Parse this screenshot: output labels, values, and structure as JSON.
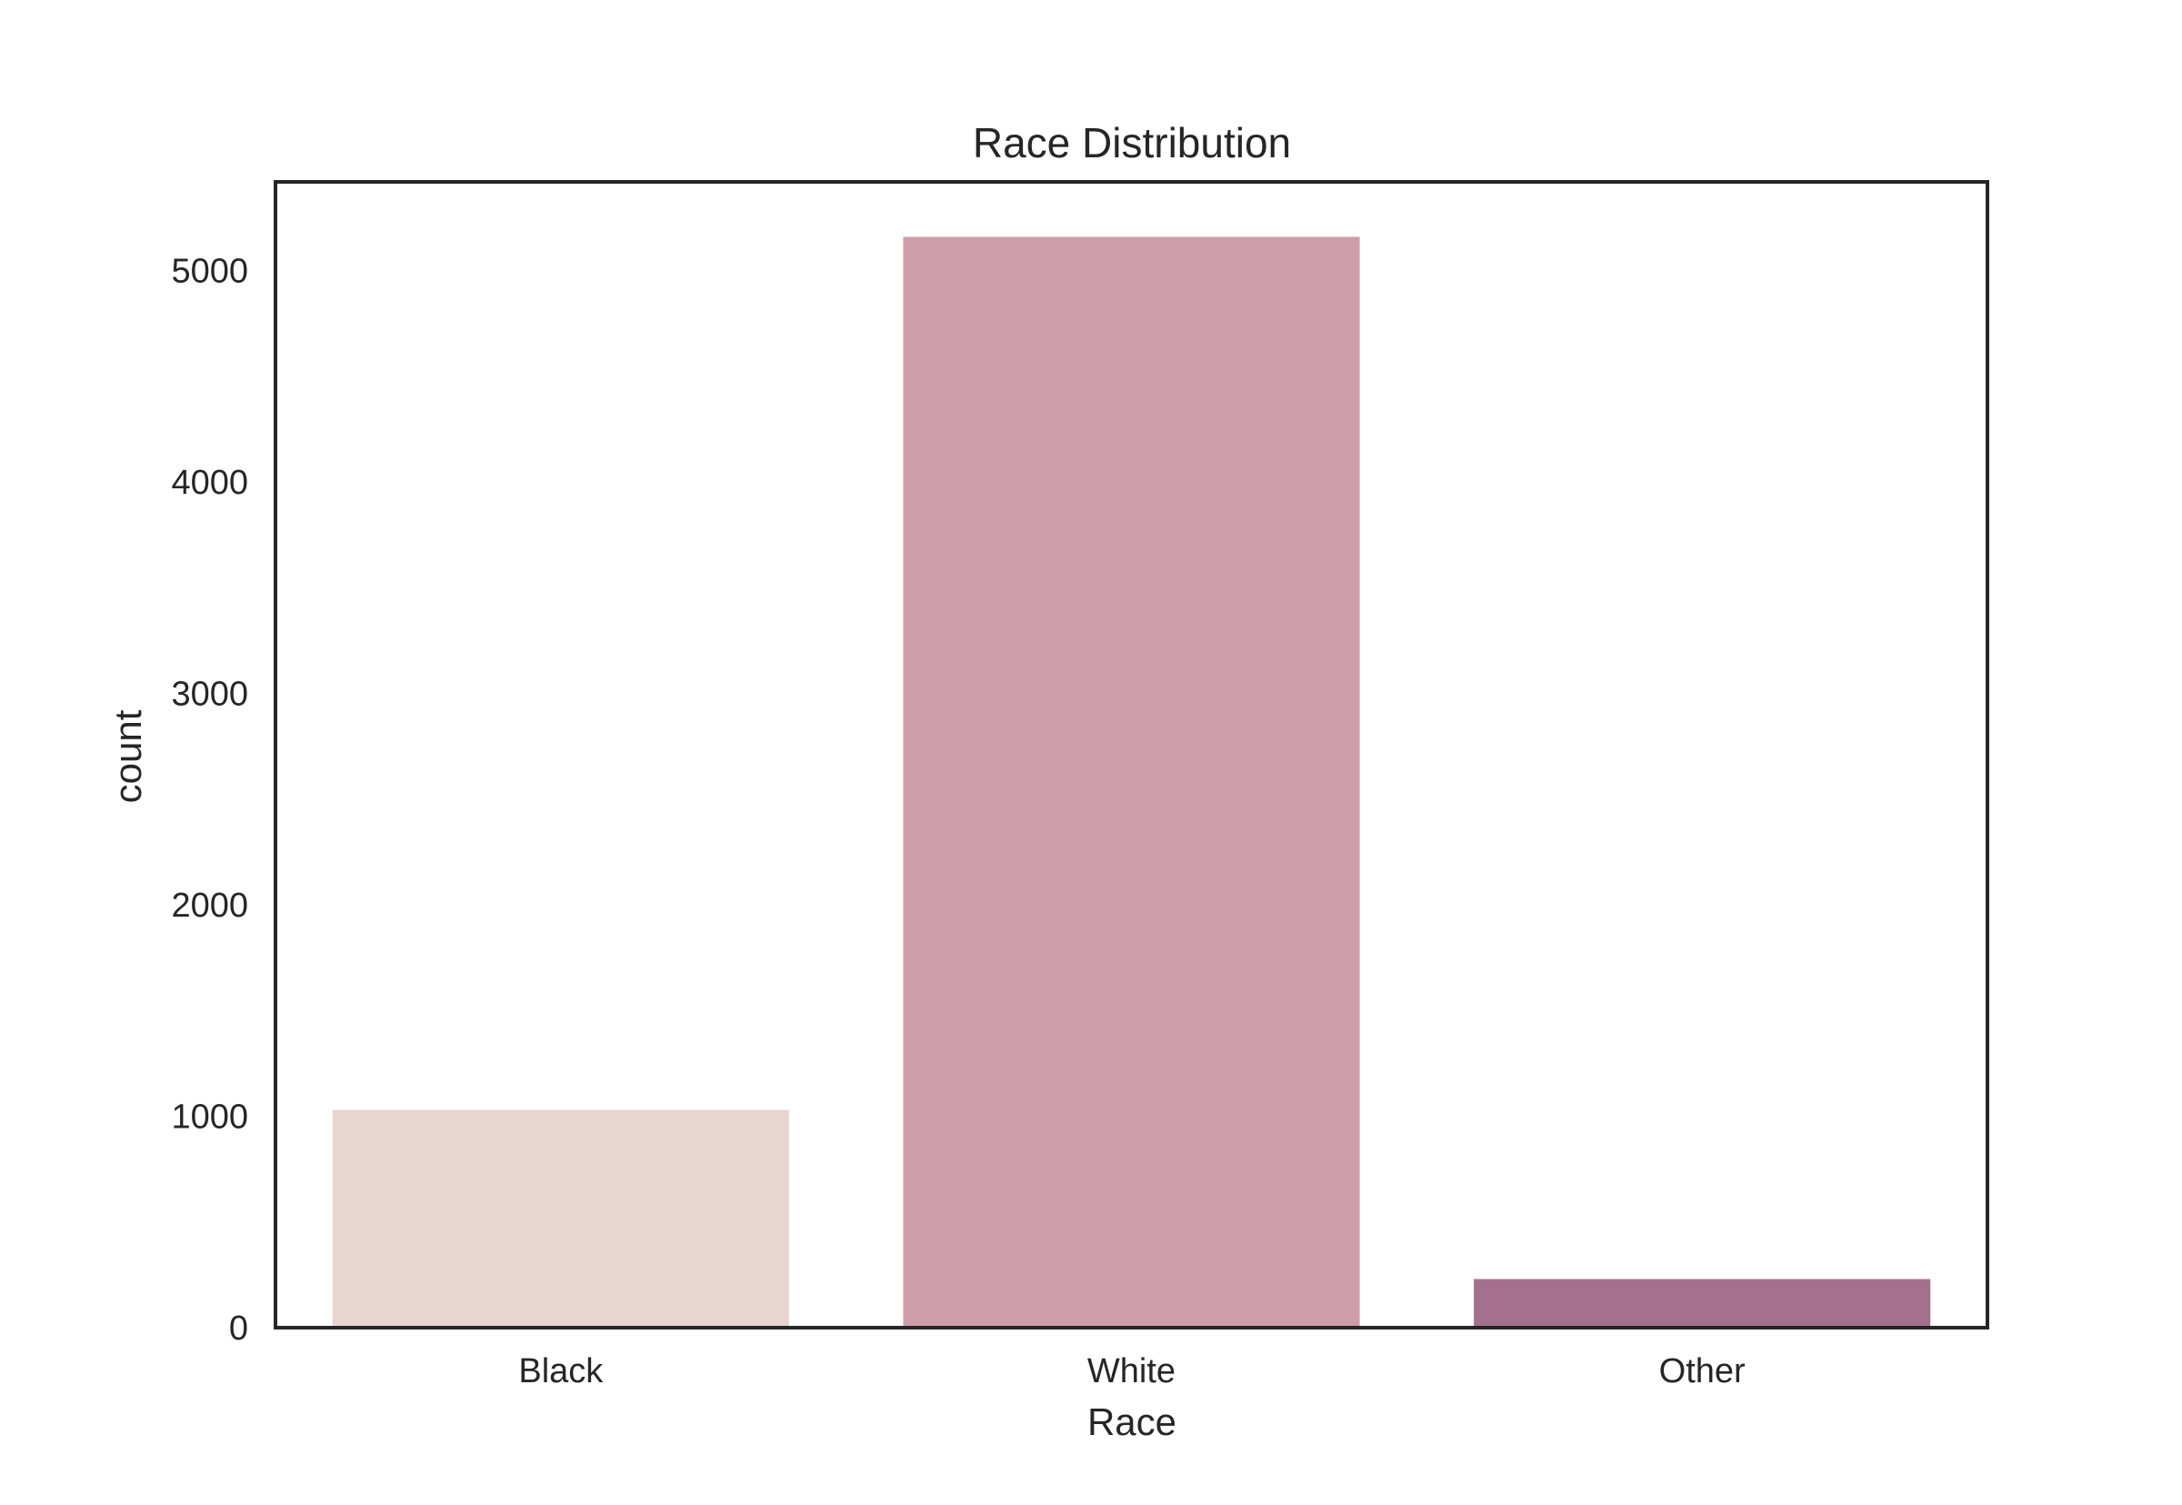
{
  "chart_data": {
    "type": "bar",
    "title": "Race Distribution",
    "xlabel": "Race",
    "ylabel": "count",
    "categories": [
      "Black",
      "White",
      "Other"
    ],
    "values": [
      1030,
      5160,
      230
    ],
    "colors": [
      "#e8d4d0",
      "#cd9ea9",
      "#a4708e"
    ],
    "ylim": [
      0,
      5420
    ],
    "yticks": [
      0,
      1000,
      2000,
      3000,
      4000,
      5000
    ],
    "grid": false,
    "legend": "none",
    "frame_color": "#262626"
  }
}
